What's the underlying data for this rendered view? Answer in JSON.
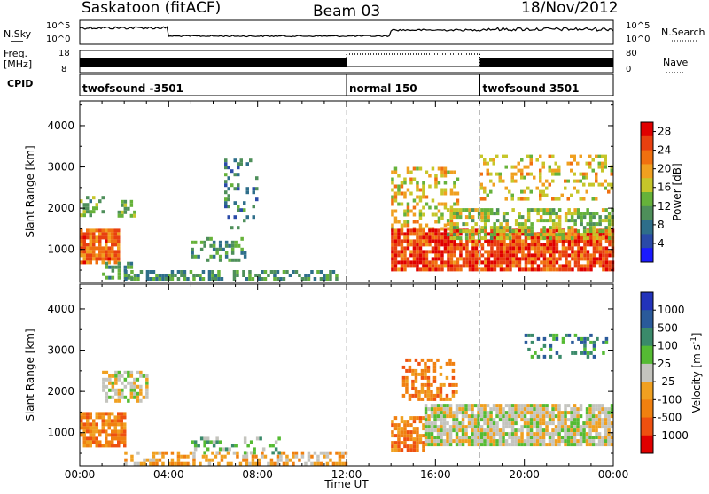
{
  "header": {
    "station": "Saskatoon (fitACF)",
    "beam": "Beam 03",
    "date": "18/Nov/2012"
  },
  "side_labels": {
    "nsky": "N.Sky",
    "nsky_top": "10^5",
    "nsky_bottom": "10^0",
    "freq_line1": "Freq.",
    "freq_line2": "[MHz]",
    "freq_top": "18",
    "freq_bottom": "8",
    "cpid": "CPID",
    "nsearch": "N.Search",
    "nsearch_top": "10^5",
    "nsearch_bottom": "10^0",
    "nave": "Nave",
    "nave_top": "80",
    "nave_bottom": "0"
  },
  "cpid_segments": [
    {
      "label": "twofsound -3501",
      "start_hour": 0
    },
    {
      "label": "normal 150",
      "start_hour": 12
    },
    {
      "label": "twofsound 3501",
      "start_hour": 18
    }
  ],
  "colors": {
    "power_scale": [
      "#1a1aff",
      "#2a4aa8",
      "#2e6e8a",
      "#4e8f5a",
      "#66b23a",
      "#c6c62a",
      "#f0a020",
      "#f07010",
      "#e84010",
      "#e00000"
    ],
    "velocity_scale": [
      "#2233bb",
      "#2a5a9a",
      "#3a8a6a",
      "#55bb33",
      "#c4c4be",
      "#f0a020",
      "#f08010",
      "#ee5010",
      "#e00000"
    ],
    "axis": "#000000",
    "dash": "#bbbbbb"
  },
  "chart_data": [
    {
      "type": "heatmap",
      "name_hint": "power",
      "ylabel": "Slant Range [km]",
      "xlabel": "",
      "x_hours": [
        0,
        4,
        8,
        12,
        16,
        20,
        24
      ],
      "x_tick_labels": [
        "00:00",
        "04:00",
        "08:00",
        "12:00",
        "16:00",
        "20:00",
        "00:00"
      ],
      "ylim": [
        200,
        4600
      ],
      "y_ticks": [
        1000,
        2000,
        3000,
        4000
      ],
      "colorbar": {
        "label": "Power [dB]",
        "ticks": [
          "4",
          "8",
          "12",
          "16",
          "20",
          "24",
          "28"
        ],
        "range": [
          0,
          30
        ]
      },
      "mode_changes_hours": [
        12,
        18
      ],
      "regions": [
        {
          "x": [
            0.0,
            1.7
          ],
          "y": [
            700,
            1500
          ],
          "value": 24,
          "density": 0.85
        },
        {
          "x": [
            0.0,
            1.0
          ],
          "y": [
            1800,
            2300
          ],
          "value": 12,
          "density": 0.6
        },
        {
          "x": [
            1.0,
            2.4
          ],
          "y": [
            300,
            700
          ],
          "value": 10,
          "density": 0.5
        },
        {
          "x": [
            1.7,
            2.5
          ],
          "y": [
            1800,
            2200
          ],
          "value": 14,
          "density": 0.5
        },
        {
          "x": [
            2.0,
            11.5
          ],
          "y": [
            250,
            500
          ],
          "value": 10,
          "density": 0.55
        },
        {
          "x": [
            5.0,
            7.5
          ],
          "y": [
            700,
            1300
          ],
          "value": 10,
          "density": 0.35
        },
        {
          "x": [
            6.5,
            8.0
          ],
          "y": [
            1500,
            3200
          ],
          "value": 8,
          "density": 0.25
        },
        {
          "x": [
            14.0,
            17.0
          ],
          "y": [
            1500,
            3000
          ],
          "value": 18,
          "density": 0.35
        },
        {
          "x": [
            14.0,
            24.0
          ],
          "y": [
            500,
            1500
          ],
          "value": 26,
          "density": 0.85
        },
        {
          "x": [
            16.5,
            24.0
          ],
          "y": [
            1300,
            2000
          ],
          "value": 15,
          "density": 0.55
        },
        {
          "x": [
            18.0,
            24.0
          ],
          "y": [
            2200,
            3300
          ],
          "value": 18,
          "density": 0.3
        }
      ]
    },
    {
      "type": "heatmap",
      "name_hint": "velocity",
      "ylabel": "Slant Range [km]",
      "xlabel": "Time UT",
      "x_hours": [
        0,
        4,
        8,
        12,
        16,
        20,
        24
      ],
      "x_tick_labels": [
        "00:00",
        "04:00",
        "08:00",
        "12:00",
        "16:00",
        "20:00",
        "00:00"
      ],
      "ylim": [
        200,
        4600
      ],
      "y_ticks": [
        1000,
        2000,
        3000,
        4000
      ],
      "colorbar": {
        "label": "Velocity [m s",
        "label_sup": "-1",
        "label_end": "]",
        "ticks": [
          "1000",
          "500",
          "100",
          "25",
          "-25",
          "-100",
          "-500",
          "-1000"
        ]
      },
      "mode_changes_hours": [
        12,
        18
      ],
      "regions": [
        {
          "x": [
            0.0,
            2.0
          ],
          "y": [
            700,
            1500
          ],
          "cat": 6,
          "density": 0.8
        },
        {
          "x": [
            1.0,
            3.0
          ],
          "y": [
            1800,
            2500
          ],
          "cat": 4,
          "density": 0.5
        },
        {
          "x": [
            2.0,
            12.0
          ],
          "y": [
            250,
            550
          ],
          "cat": 5,
          "density": 0.5
        },
        {
          "x": [
            5.0,
            9.0
          ],
          "y": [
            500,
            900
          ],
          "cat": 3,
          "density": 0.3
        },
        {
          "x": [
            14.0,
            15.5
          ],
          "y": [
            600,
            1400
          ],
          "cat": 6,
          "density": 0.7
        },
        {
          "x": [
            14.5,
            17.0
          ],
          "y": [
            1800,
            2800
          ],
          "cat": 6,
          "density": 0.4
        },
        {
          "x": [
            15.5,
            24.0
          ],
          "y": [
            700,
            1700
          ],
          "cat": 4,
          "density": 0.85
        },
        {
          "x": [
            20.0,
            24.0
          ],
          "y": [
            2800,
            3400
          ],
          "cat": 2,
          "density": 0.3
        }
      ]
    }
  ]
}
